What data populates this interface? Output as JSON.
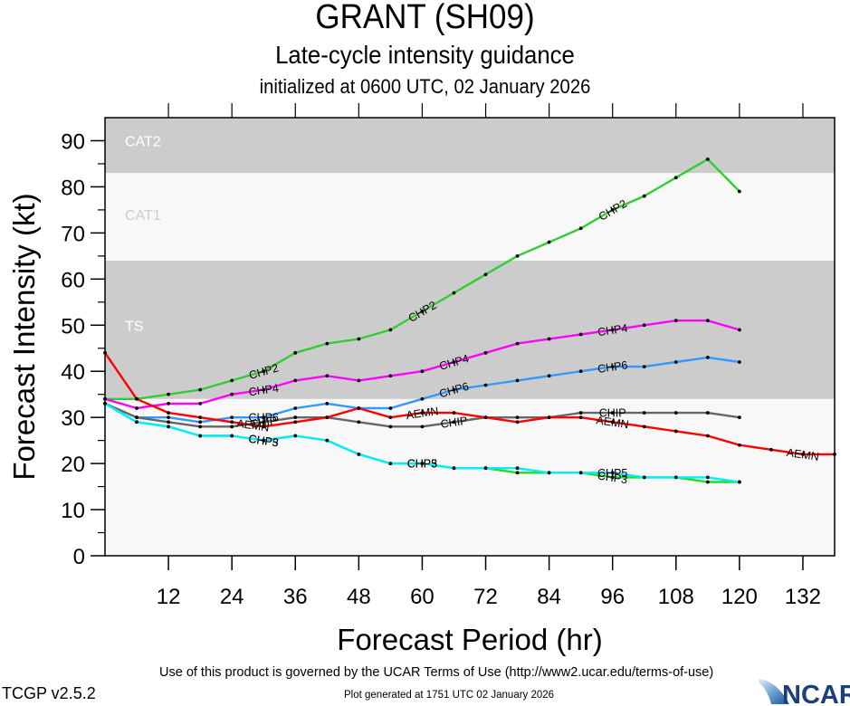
{
  "chart_data": {
    "type": "line",
    "title": "GRANT (SH09)",
    "subtitle": "Late-cycle intensity guidance",
    "initialized": "initialized at 0600 UTC, 02 January 2026",
    "xlabel": "Forecast Period (hr)",
    "ylabel": "Forecast Intensity (kt)",
    "xlim": [
      0,
      138
    ],
    "ylim": [
      0,
      95
    ],
    "xticks": [
      12,
      24,
      36,
      48,
      60,
      72,
      84,
      96,
      108,
      120,
      132
    ],
    "yticks": [
      0,
      10,
      20,
      30,
      40,
      50,
      60,
      70,
      80,
      90
    ],
    "grid": false,
    "bands": [
      {
        "label": "TS",
        "from": 34,
        "to": 64,
        "fill": "#cccccc",
        "label_color": "#ffffff"
      },
      {
        "label": "CAT1",
        "from": 64,
        "to": 83,
        "fill": "#f8f8f8",
        "label_color": "#cccccc"
      },
      {
        "label": "CAT2",
        "from": 83,
        "to": 95,
        "fill": "#cccccc",
        "label_color": "#ffffff"
      }
    ],
    "series": [
      {
        "name": "CHP2",
        "color": "#33cc33",
        "x": [
          0,
          6,
          12,
          18,
          24,
          30,
          36,
          42,
          48,
          54,
          60,
          66,
          72,
          78,
          84,
          90,
          96,
          102,
          108,
          114,
          120
        ],
        "values": [
          34,
          34,
          35,
          36,
          38,
          40,
          44,
          46,
          47,
          49,
          53,
          57,
          61,
          65,
          68,
          71,
          75,
          78,
          82,
          86,
          79
        ],
        "label_at": [
          30,
          60,
          96
        ]
      },
      {
        "name": "CHP4",
        "color": "#ff00ff",
        "x": [
          0,
          6,
          12,
          18,
          24,
          30,
          36,
          42,
          48,
          54,
          60,
          66,
          72,
          78,
          84,
          90,
          96,
          102,
          108,
          114,
          120
        ],
        "values": [
          34,
          32,
          33,
          33,
          35,
          36,
          38,
          39,
          38,
          39,
          40,
          42,
          44,
          46,
          47,
          48,
          49,
          50,
          51,
          51,
          49
        ],
        "label_at": [
          30,
          66,
          96
        ]
      },
      {
        "name": "CHP6",
        "color": "#3399ff",
        "x": [
          0,
          6,
          12,
          18,
          24,
          30,
          36,
          42,
          48,
          54,
          60,
          66,
          72,
          78,
          84,
          90,
          96,
          102,
          108,
          114,
          120
        ],
        "values": [
          33,
          30,
          30,
          29,
          30,
          30,
          32,
          33,
          32,
          32,
          34,
          36,
          37,
          38,
          39,
          40,
          41,
          41,
          42,
          43,
          42
        ],
        "label_at": [
          30,
          66,
          96
        ]
      },
      {
        "name": "CHIP",
        "color": "#666666",
        "x": [
          0,
          6,
          12,
          18,
          24,
          30,
          36,
          42,
          48,
          54,
          60,
          66,
          72,
          78,
          84,
          90,
          96,
          102,
          108,
          114,
          120
        ],
        "values": [
          33,
          30,
          29,
          28,
          28,
          29,
          30,
          30,
          29,
          28,
          28,
          29,
          30,
          30,
          30,
          31,
          31,
          31,
          31,
          31,
          30
        ],
        "label_at": [
          30,
          66,
          96
        ]
      },
      {
        "name": "AEMN",
        "color": "#ff0000",
        "x": [
          0,
          6,
          12,
          18,
          24,
          30,
          36,
          42,
          48,
          54,
          60,
          66,
          72,
          78,
          84,
          90,
          96,
          102,
          108,
          114,
          120,
          126,
          132,
          138
        ],
        "values": [
          44,
          34,
          31,
          30,
          29,
          28,
          29,
          30,
          32,
          30,
          31,
          31,
          30,
          29,
          30,
          30,
          29,
          28,
          27,
          26,
          24,
          23,
          22,
          22
        ],
        "label_at": [
          28,
          60,
          96,
          132
        ]
      },
      {
        "name": "CHP3",
        "color": "#22dd22",
        "x": [
          0,
          6,
          12,
          18,
          24,
          30,
          36,
          42,
          48,
          54,
          60,
          66,
          72,
          78,
          84,
          90,
          96,
          102,
          108,
          114,
          120
        ],
        "values": [
          33,
          29,
          28,
          26,
          26,
          25,
          26,
          25,
          22,
          20,
          20,
          19,
          19,
          18,
          18,
          18,
          17,
          17,
          17,
          16,
          16
        ],
        "label_at": [
          30,
          60,
          96
        ]
      },
      {
        "name": "CHP5",
        "color": "#00eeff",
        "x": [
          0,
          6,
          12,
          18,
          24,
          30,
          36,
          42,
          48,
          54,
          60,
          66,
          72,
          78,
          84,
          90,
          96,
          102,
          108,
          114,
          120
        ],
        "values": [
          33,
          29,
          28,
          26,
          26,
          25,
          26,
          25,
          22,
          20,
          20,
          19,
          19,
          19,
          18,
          18,
          18,
          17,
          17,
          17,
          16
        ],
        "label_at": [
          30,
          60,
          96
        ]
      }
    ]
  },
  "footer": {
    "terms": "Use of this product is governed by the UCAR Terms of Use (http://www2.ucar.edu/terms-of-use)",
    "generated": "Plot generated at 1751 UTC   02 January 2026",
    "version": "TCGP v2.5.2",
    "logo_text": "NCAR"
  }
}
